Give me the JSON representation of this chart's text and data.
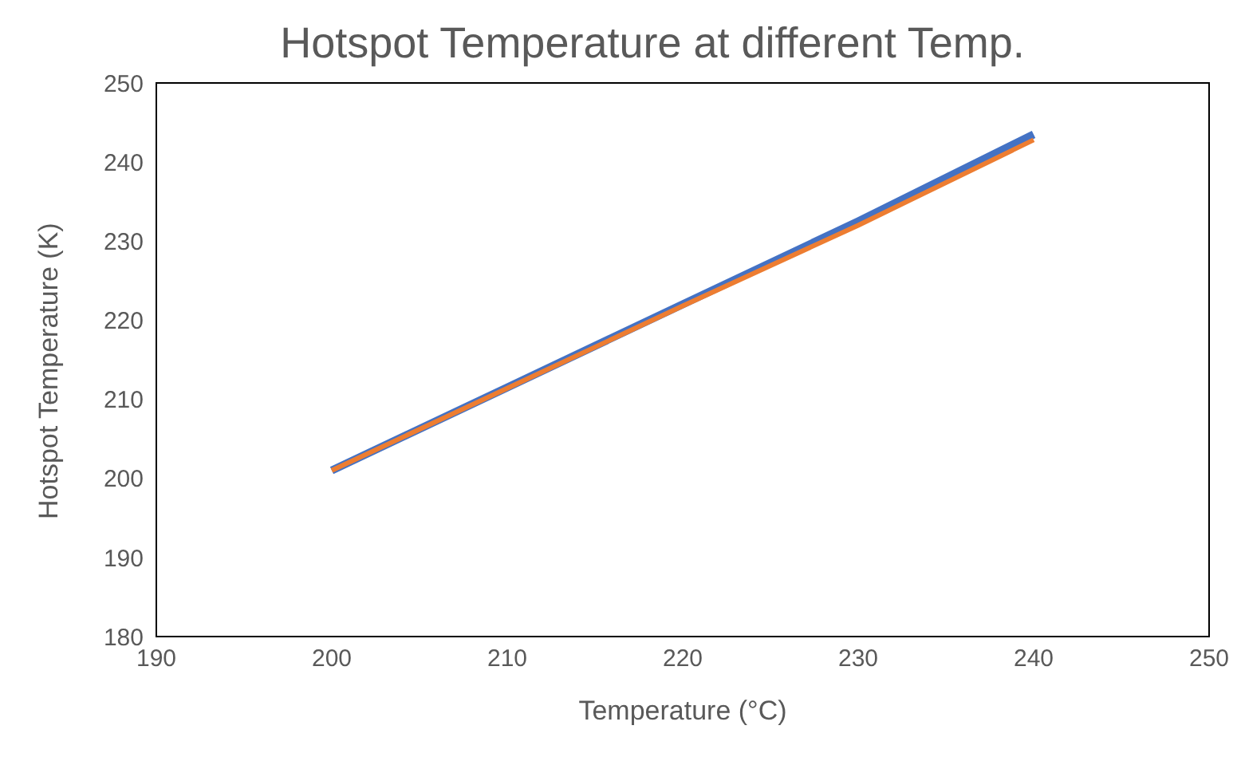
{
  "chart_data": {
    "type": "line",
    "title": "Hotspot Temperature at different Temp.",
    "xlabel": "Temperature (°C)",
    "ylabel": "Hotspot Temperature (K)",
    "x": [
      200,
      210,
      220,
      230,
      240
    ],
    "series": [
      {
        "color": "#4472c4",
        "values": [
          201,
          211.5,
          222,
          232.5,
          243.5
        ]
      },
      {
        "color": "#ed7d31",
        "values": [
          201,
          211.4,
          221.8,
          232,
          242.8
        ]
      }
    ],
    "xlim": [
      190,
      250
    ],
    "xticks": [
      190,
      200,
      210,
      220,
      230,
      240,
      250
    ],
    "ylim": [
      180,
      250
    ],
    "yticks": [
      180,
      190,
      200,
      210,
      220,
      230,
      240,
      250
    ],
    "grid": false,
    "marker": "none",
    "line_style": "solid"
  }
}
